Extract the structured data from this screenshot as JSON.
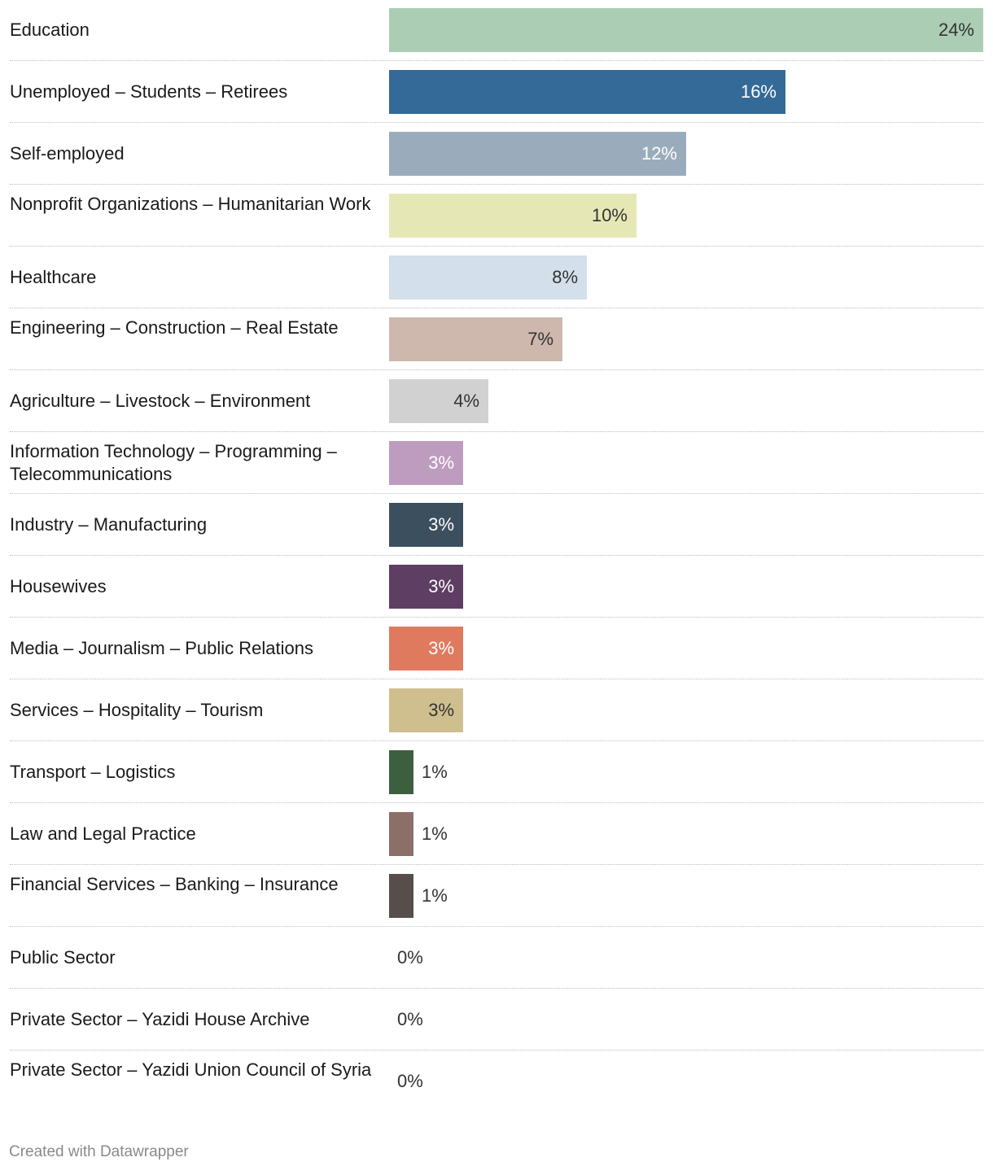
{
  "chart_data": {
    "type": "bar",
    "orientation": "horizontal",
    "value_suffix": "%",
    "categories": [
      "Education",
      "Unemployed – Students – Retirees",
      "Self-employed",
      "Nonprofit Organizations – Humanitarian Work",
      "Healthcare",
      "Engineering – Construction – Real Estate",
      "Agriculture – Livestock – Environment",
      "Information Technology – Programming – Telecommunications",
      "Industry – Manufacturing",
      "Housewives",
      "Media – Journalism – Public Relations",
      "Services – Hospitality – Tourism",
      "Transport – Logistics",
      "Law and Legal Practice",
      "Financial Services – Banking – Insurance",
      "Public Sector",
      "Private Sector – Yazidi House Archive",
      "Private Sector – Yazidi Union Council of Syria"
    ],
    "values": [
      24,
      16,
      12,
      10,
      8,
      7,
      4,
      3,
      3,
      3,
      3,
      3,
      1,
      1,
      1,
      0,
      0,
      0
    ],
    "labels": [
      "24%",
      "16%",
      "12%",
      "10%",
      "8%",
      "7%",
      "4%",
      "3%",
      "3%",
      "3%",
      "3%",
      "3%",
      "1%",
      "1%",
      "1%",
      "0%",
      "0%",
      "0%"
    ],
    "colors": [
      "#aacdb4",
      "#336a98",
      "#9aacbc",
      "#e5e8b5",
      "#d3dfea",
      "#ceb7ac",
      "#d1d1d1",
      "#be9cbf",
      "#3c4f5e",
      "#5e3e63",
      "#e07a5f",
      "#cfbf8f",
      "#3e5f3f",
      "#8b706a",
      "#574d4b",
      "#cccccc",
      "#cccccc",
      "#cccccc"
    ],
    "label_colors": [
      "#333333",
      "#ffffff",
      "#ffffff",
      "#333333",
      "#333333",
      "#333333",
      "#333333",
      "#ffffff",
      "#ffffff",
      "#ffffff",
      "#ffffff",
      "#333333",
      "#333333",
      "#333333",
      "#333333",
      "#333333",
      "#333333",
      "#333333"
    ],
    "xlim": [
      0,
      24
    ],
    "grid": false,
    "title": "",
    "xlabel": "",
    "ylabel": ""
  },
  "footer": {
    "credit": "Created with Datawrapper"
  }
}
